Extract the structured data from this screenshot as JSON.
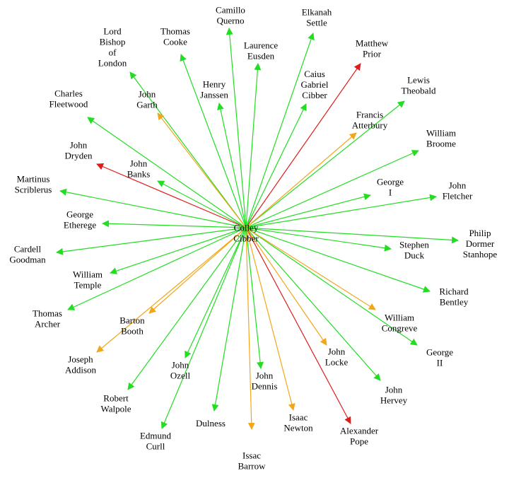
{
  "center": {
    "id": "colley-cibber",
    "lines": [
      "Colley",
      "Cibber"
    ]
  },
  "edge_colors": {
    "green": "#22dd22",
    "orange": "#f2a71b",
    "red": "#e01b1b"
  },
  "nodes": [
    {
      "id": "camillo-querno",
      "lines": [
        "Camillo",
        "Querno"
      ],
      "color": "green"
    },
    {
      "id": "elkanah-settle",
      "lines": [
        "Elkanah",
        "Settle"
      ],
      "color": "green"
    },
    {
      "id": "matthew-prior",
      "lines": [
        "Matthew",
        "Prior"
      ],
      "color": "red"
    },
    {
      "id": "lewis-theobald",
      "lines": [
        "Lewis",
        "Theobald"
      ],
      "color": "green"
    },
    {
      "id": "william-broome",
      "lines": [
        "William",
        "Broome"
      ],
      "color": "green"
    },
    {
      "id": "john-fletcher",
      "lines": [
        "John",
        "Fletcher"
      ],
      "color": "green"
    },
    {
      "id": "philip-dormer-stanhope",
      "lines": [
        "Philip",
        "Dormer",
        "Stanhope"
      ],
      "color": "green"
    },
    {
      "id": "richard-bentley",
      "lines": [
        "Richard",
        "Bentley"
      ],
      "color": "green"
    },
    {
      "id": "george-ii",
      "lines": [
        "George",
        "II"
      ],
      "color": "green"
    },
    {
      "id": "john-hervey",
      "lines": [
        "John",
        "Hervey"
      ],
      "color": "green"
    },
    {
      "id": "alexander-pope",
      "lines": [
        "Alexander",
        "Pope"
      ],
      "color": "red"
    },
    {
      "id": "isaac-newton",
      "lines": [
        "Isaac",
        "Newton"
      ],
      "color": "orange"
    },
    {
      "id": "issac-barrow",
      "lines": [
        "Issac",
        "Barrow"
      ],
      "color": "orange"
    },
    {
      "id": "dulness",
      "lines": [
        "Dulness"
      ],
      "color": "green"
    },
    {
      "id": "edmund-curll",
      "lines": [
        "Edmund",
        "Curll"
      ],
      "color": "green"
    },
    {
      "id": "robert-walpole",
      "lines": [
        "Robert",
        "Walpole"
      ],
      "color": "green"
    },
    {
      "id": "joseph-addison",
      "lines": [
        "Joseph",
        "Addison"
      ],
      "color": "orange"
    },
    {
      "id": "thomas-archer",
      "lines": [
        "Thomas",
        "Archer"
      ],
      "color": "green"
    },
    {
      "id": "cardell-goodman",
      "lines": [
        "Cardell",
        "Goodman"
      ],
      "color": "green"
    },
    {
      "id": "martinus-scriblerus",
      "lines": [
        "Martinus",
        "Scriblerus"
      ],
      "color": "green"
    },
    {
      "id": "john-dryden",
      "lines": [
        "John",
        "Dryden"
      ],
      "color": "red"
    },
    {
      "id": "charles-fleetwood",
      "lines": [
        "Charles",
        "Fleetwood"
      ],
      "color": "green"
    },
    {
      "id": "lord-bishop-of-london",
      "lines": [
        "Lord",
        "Bishop",
        "of",
        "London"
      ],
      "color": "green"
    },
    {
      "id": "thomas-cooke",
      "lines": [
        "Thomas",
        "Cooke"
      ],
      "color": "green"
    },
    {
      "id": "laurence-eusden",
      "lines": [
        "Laurence",
        "Eusden"
      ],
      "color": "green"
    },
    {
      "id": "henry-janssen",
      "lines": [
        "Henry",
        "Janssen"
      ],
      "color": "green"
    },
    {
      "id": "caius-gabriel-cibber",
      "lines": [
        "Caius",
        "Gabriel",
        "Cibber"
      ],
      "color": "green"
    },
    {
      "id": "francis-atterbury",
      "lines": [
        "Francis",
        "Atterbury"
      ],
      "color": "orange"
    },
    {
      "id": "george-i",
      "lines": [
        "George",
        "I"
      ],
      "color": "green"
    },
    {
      "id": "stephen-duck",
      "lines": [
        "Stephen",
        "Duck"
      ],
      "color": "green"
    },
    {
      "id": "william-congreve",
      "lines": [
        "William",
        "Congreve"
      ],
      "color": "orange"
    },
    {
      "id": "john-locke",
      "lines": [
        "John",
        "Locke"
      ],
      "color": "orange"
    },
    {
      "id": "john-dennis",
      "lines": [
        "John",
        "Dennis"
      ],
      "color": "green"
    },
    {
      "id": "john-ozell",
      "lines": [
        "John",
        "Ozell"
      ],
      "color": "green"
    },
    {
      "id": "barton-booth",
      "lines": [
        "Barton",
        "Booth"
      ],
      "color": "orange"
    },
    {
      "id": "william-temple",
      "lines": [
        "William",
        "Temple"
      ],
      "color": "green"
    },
    {
      "id": "george-etherege",
      "lines": [
        "George",
        "Etherege"
      ],
      "color": "green"
    },
    {
      "id": "john-banks",
      "lines": [
        "John",
        "Banks"
      ],
      "color": "green"
    },
    {
      "id": "john-garth",
      "lines": [
        "John",
        "Garth"
      ],
      "color": "orange"
    }
  ]
}
